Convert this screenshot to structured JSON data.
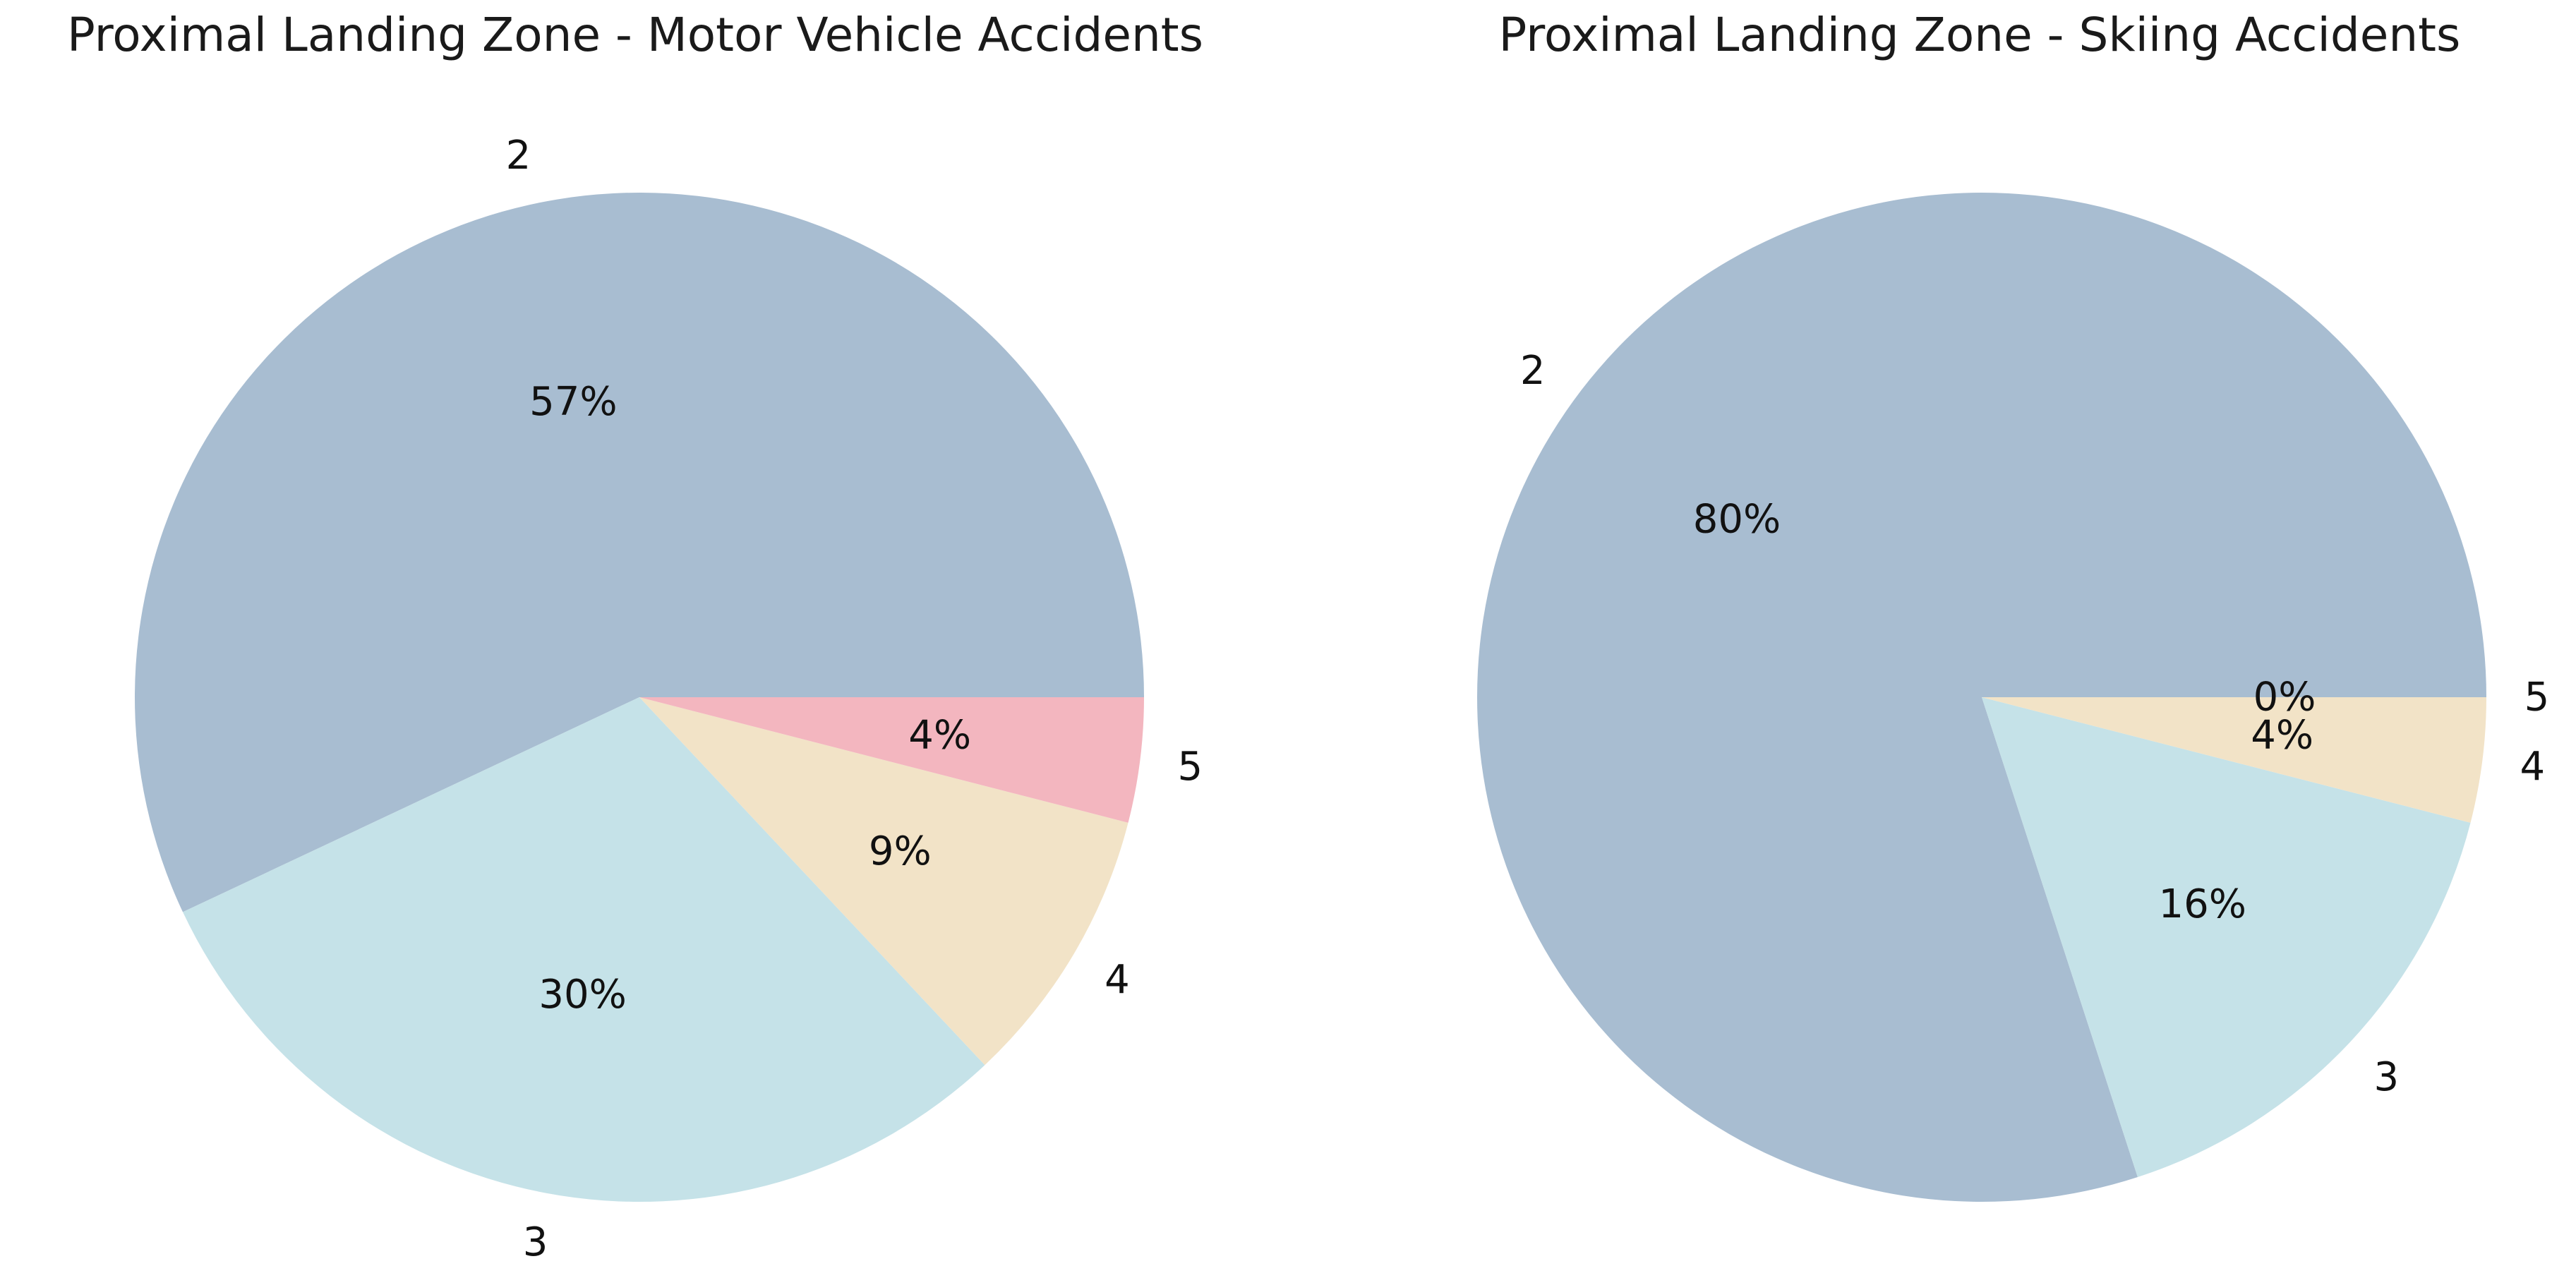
{
  "chart_data": [
    {
      "type": "pie",
      "title": "Proximal Landing Zone - Motor Vehicle Accidents",
      "categories": [
        "2",
        "3",
        "4",
        "5"
      ],
      "values": [
        57,
        30,
        9,
        4
      ],
      "value_labels": [
        "57%",
        "30%",
        "9%",
        "4%"
      ],
      "colors": [
        "#a8bdd1",
        "#c5e2e8",
        "#f2e3c7",
        "#f3b6bf"
      ],
      "legend": "none"
    },
    {
      "type": "pie",
      "title": "Proximal Landing Zone - Skiing Accidents",
      "categories": [
        "2",
        "3",
        "4",
        "5"
      ],
      "values": [
        80,
        16,
        4,
        0
      ],
      "value_labels": [
        "80%",
        "16%",
        "4%",
        "0%"
      ],
      "colors": [
        "#a8bdd1",
        "#c5e2e8",
        "#f2e3c7",
        "#f3b6bf"
      ],
      "legend": "none"
    }
  ]
}
